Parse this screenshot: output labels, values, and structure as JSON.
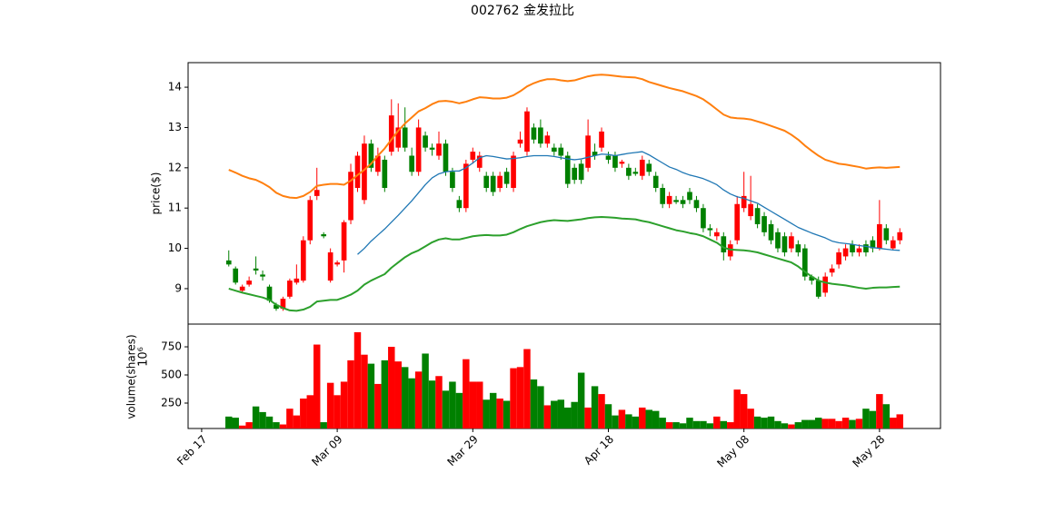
{
  "chart_data": {
    "type": "candlestick",
    "title": "002762   金发拉比",
    "ylabel": "price($)",
    "x": [
      "Feb 21",
      "Feb 22",
      "Feb 23",
      "Feb 24",
      "Feb 25",
      "Feb 26",
      "Feb 27",
      "Feb 28",
      "Mar 01",
      "Mar 02",
      "Mar 03",
      "Mar 04",
      "Mar 05",
      "Mar 06",
      "Mar 07",
      "Mar 08",
      "Mar 09",
      "Mar 10",
      "Mar 11",
      "Mar 12",
      "Mar 13",
      "Mar 14",
      "Mar 15",
      "Mar 16",
      "Mar 17",
      "Mar 18",
      "Mar 19",
      "Mar 20",
      "Mar 21",
      "Mar 22",
      "Mar 23",
      "Mar 24",
      "Mar 25",
      "Mar 26",
      "Mar 27",
      "Mar 28",
      "Mar 29",
      "Mar 30",
      "Mar 31",
      "Apr 01",
      "Apr 02",
      "Apr 03",
      "Apr 04",
      "Apr 05",
      "Apr 06",
      "Apr 07",
      "Apr 08",
      "Apr 09",
      "Apr 10",
      "Apr 11",
      "Apr 12",
      "Apr 13",
      "Apr 14",
      "Apr 15",
      "Apr 16",
      "Apr 17",
      "Apr 18",
      "Apr 19",
      "Apr 20",
      "Apr 21",
      "Apr 22",
      "Apr 23",
      "Apr 24",
      "Apr 25",
      "Apr 26",
      "Apr 27",
      "Apr 28",
      "Apr 29",
      "Apr 30",
      "May 01",
      "May 02",
      "May 03",
      "May 04",
      "May 05",
      "May 06",
      "May 07",
      "May 08",
      "May 09",
      "May 10",
      "May 11",
      "May 12",
      "May 13",
      "May 14",
      "May 15",
      "May 16",
      "May 17",
      "May 18",
      "May 19",
      "May 20",
      "May 21",
      "May 22",
      "May 23",
      "May 24",
      "May 25",
      "May 26",
      "May 27",
      "May 28",
      "May 29",
      "May 30",
      "May 31"
    ],
    "open": [
      9.7,
      9.5,
      8.95,
      9.1,
      9.5,
      9.35,
      9.05,
      8.6,
      8.5,
      8.8,
      9.15,
      9.2,
      10.2,
      11.3,
      10.35,
      9.2,
      9.6,
      9.7,
      10.7,
      11.5,
      11.2,
      12.6,
      11.9,
      12.2,
      12.4,
      12.5,
      13.0,
      12.3,
      11.9,
      12.8,
      12.5,
      12.3,
      12.6,
      11.9,
      11.2,
      11.0,
      12.2,
      12.0,
      11.8,
      11.8,
      11.5,
      11.9,
      11.5,
      12.6,
      12.4,
      13.0,
      13.0,
      12.6,
      12.5,
      12.5,
      12.3,
      12.0,
      12.1,
      12.0,
      12.4,
      12.5,
      12.3,
      12.3,
      12.1,
      12.0,
      11.9,
      11.8,
      12.1,
      11.8,
      11.5,
      11.1,
      11.2,
      11.2,
      11.4,
      11.2,
      11.0,
      10.5,
      10.3,
      10.3,
      9.8,
      10.2,
      11.0,
      10.8,
      11.0,
      10.8,
      10.6,
      10.4,
      10.3,
      10.0,
      10.1,
      10.0,
      9.3,
      9.2,
      8.9,
      9.4,
      9.6,
      9.8,
      10.1,
      9.9,
      10.1,
      10.2,
      10.0,
      10.5,
      10.0,
      10.2
    ],
    "high": [
      9.95,
      9.55,
      9.1,
      9.3,
      9.8,
      9.45,
      9.1,
      8.65,
      8.8,
      9.25,
      9.6,
      10.3,
      11.3,
      12.0,
      10.4,
      10.0,
      9.7,
      10.7,
      12.1,
      12.4,
      12.8,
      12.7,
      12.5,
      12.3,
      13.7,
      13.6,
      13.5,
      12.5,
      13.2,
      12.9,
      12.6,
      12.9,
      12.7,
      12.0,
      11.3,
      12.2,
      12.5,
      12.4,
      11.9,
      11.9,
      11.9,
      12.0,
      12.4,
      12.9,
      13.5,
      13.1,
      13.2,
      12.9,
      12.6,
      12.6,
      12.4,
      12.1,
      12.2,
      13.2,
      12.6,
      13.0,
      12.4,
      12.4,
      12.2,
      12.1,
      12.0,
      12.3,
      12.2,
      11.9,
      11.6,
      11.4,
      11.3,
      11.3,
      11.5,
      11.3,
      11.1,
      10.6,
      10.5,
      10.4,
      10.2,
      11.3,
      11.9,
      11.8,
      11.1,
      10.9,
      10.7,
      10.5,
      10.4,
      10.4,
      10.2,
      10.1,
      9.35,
      9.3,
      9.4,
      9.6,
      10.0,
      10.1,
      10.2,
      10.1,
      10.2,
      10.3,
      11.2,
      10.6,
      10.3,
      10.5
    ],
    "low": [
      9.55,
      9.1,
      8.9,
      9.05,
      9.35,
      9.2,
      8.65,
      8.45,
      8.45,
      8.75,
      9.1,
      9.15,
      10.1,
      11.2,
      10.25,
      9.15,
      9.55,
      9.4,
      10.6,
      11.4,
      11.1,
      11.9,
      11.8,
      11.4,
      12.3,
      12.4,
      12.4,
      11.8,
      11.8,
      12.4,
      12.3,
      12.2,
      11.8,
      11.4,
      10.9,
      10.9,
      12.1,
      11.9,
      11.4,
      11.3,
      11.4,
      11.5,
      11.4,
      12.5,
      12.3,
      12.6,
      12.5,
      12.5,
      12.3,
      12.2,
      11.5,
      11.6,
      11.6,
      11.9,
      12.2,
      12.4,
      12.1,
      11.9,
      12.0,
      11.7,
      11.8,
      11.7,
      11.8,
      11.4,
      11.0,
      11.0,
      11.1,
      11.0,
      11.1,
      10.9,
      10.4,
      10.3,
      10.2,
      9.7,
      9.7,
      10.1,
      10.9,
      10.7,
      10.5,
      10.3,
      10.1,
      9.9,
      9.8,
      9.9,
      9.8,
      9.2,
      9.1,
      8.75,
      8.8,
      9.3,
      9.5,
      9.7,
      9.8,
      9.8,
      9.8,
      9.9,
      9.95,
      10.1,
      9.95,
      10.1
    ],
    "close": [
      9.6,
      9.15,
      9.05,
      9.2,
      9.45,
      9.3,
      8.7,
      8.5,
      8.75,
      9.2,
      9.25,
      10.2,
      11.2,
      11.45,
      10.3,
      9.9,
      9.65,
      10.65,
      11.9,
      12.3,
      12.6,
      12.0,
      12.3,
      11.5,
      13.3,
      13.0,
      12.5,
      11.9,
      13.0,
      12.5,
      12.45,
      12.6,
      11.9,
      11.5,
      11.0,
      12.1,
      12.4,
      12.3,
      11.5,
      11.4,
      11.8,
      11.6,
      12.3,
      12.7,
      13.4,
      12.7,
      12.6,
      12.8,
      12.4,
      12.3,
      11.6,
      11.7,
      11.7,
      12.8,
      12.3,
      12.9,
      12.2,
      12.0,
      12.15,
      11.8,
      11.85,
      12.2,
      11.9,
      11.5,
      11.1,
      11.3,
      11.15,
      11.1,
      11.2,
      11.0,
      10.5,
      10.45,
      10.4,
      9.9,
      10.1,
      11.1,
      11.3,
      11.1,
      10.6,
      10.4,
      10.2,
      10.0,
      9.9,
      10.3,
      9.9,
      9.3,
      9.2,
      8.8,
      9.3,
      9.5,
      9.9,
      10.0,
      9.9,
      10.0,
      9.9,
      10.0,
      10.6,
      10.2,
      10.2,
      10.4
    ],
    "up_color": "#ff0000",
    "down_color": "#008000",
    "lines": [
      {
        "color": "#ff7f0e",
        "linewidth": 2,
        "values": [
          11.95,
          11.88,
          11.8,
          11.74,
          11.7,
          11.62,
          11.52,
          11.38,
          11.3,
          11.26,
          11.25,
          11.3,
          11.4,
          11.55,
          11.58,
          11.6,
          11.6,
          11.58,
          11.68,
          11.82,
          11.95,
          12.1,
          12.3,
          12.48,
          12.7,
          12.92,
          13.1,
          13.25,
          13.4,
          13.48,
          13.58,
          13.65,
          13.66,
          13.64,
          13.6,
          13.64,
          13.7,
          13.75,
          13.74,
          13.72,
          13.72,
          13.74,
          13.8,
          13.9,
          14.02,
          14.1,
          14.16,
          14.2,
          14.2,
          14.17,
          14.15,
          14.17,
          14.22,
          14.27,
          14.3,
          14.31,
          14.3,
          14.28,
          14.26,
          14.25,
          14.24,
          14.2,
          14.13,
          14.08,
          14.03,
          13.98,
          13.94,
          13.9,
          13.84,
          13.78,
          13.7,
          13.58,
          13.45,
          13.32,
          13.25,
          13.23,
          13.22,
          13.2,
          13.15,
          13.1,
          13.04,
          12.98,
          12.92,
          12.82,
          12.7,
          12.55,
          12.42,
          12.3,
          12.2,
          12.15,
          12.1,
          12.08,
          12.05,
          12.02,
          11.98,
          12.0,
          12.01,
          12.0,
          12.01,
          12.02
        ]
      },
      {
        "color": "#2ca02c",
        "linewidth": 2,
        "values": [
          9.0,
          8.95,
          8.9,
          8.86,
          8.82,
          8.78,
          8.72,
          8.6,
          8.52,
          8.46,
          8.45,
          8.48,
          8.55,
          8.68,
          8.7,
          8.72,
          8.72,
          8.78,
          8.85,
          8.95,
          9.1,
          9.2,
          9.28,
          9.36,
          9.52,
          9.65,
          9.78,
          9.88,
          9.95,
          10.05,
          10.15,
          10.22,
          10.25,
          10.22,
          10.22,
          10.26,
          10.3,
          10.32,
          10.33,
          10.32,
          10.32,
          10.34,
          10.4,
          10.48,
          10.55,
          10.6,
          10.65,
          10.68,
          10.7,
          10.69,
          10.68,
          10.7,
          10.72,
          10.75,
          10.77,
          10.78,
          10.77,
          10.76,
          10.74,
          10.73,
          10.72,
          10.68,
          10.65,
          10.6,
          10.55,
          10.5,
          10.45,
          10.42,
          10.38,
          10.35,
          10.3,
          10.22,
          10.14,
          10.02,
          9.97,
          9.96,
          9.95,
          9.93,
          9.9,
          9.85,
          9.8,
          9.75,
          9.7,
          9.65,
          9.55,
          9.42,
          9.3,
          9.2,
          9.15,
          9.12,
          9.1,
          9.08,
          9.05,
          9.02,
          9.0,
          9.02,
          9.03,
          9.03,
          9.04,
          9.05
        ]
      },
      {
        "color": "#1f77b4",
        "linewidth": 1.3,
        "values": [
          null,
          null,
          null,
          null,
          null,
          null,
          null,
          null,
          null,
          null,
          null,
          null,
          null,
          null,
          null,
          null,
          null,
          null,
          null,
          9.85,
          10.0,
          10.18,
          10.33,
          10.48,
          10.65,
          10.82,
          11.0,
          11.18,
          11.38,
          11.58,
          11.75,
          11.85,
          11.9,
          11.92,
          11.92,
          12.0,
          12.12,
          12.25,
          12.3,
          12.28,
          12.25,
          12.22,
          12.23,
          12.25,
          12.28,
          12.3,
          12.3,
          12.3,
          12.28,
          12.25,
          12.22,
          12.2,
          12.22,
          12.26,
          12.3,
          12.34,
          12.33,
          12.3,
          12.33,
          12.36,
          12.38,
          12.4,
          12.32,
          12.22,
          12.12,
          12.02,
          11.96,
          11.88,
          11.82,
          11.78,
          11.73,
          11.66,
          11.58,
          11.45,
          11.35,
          11.28,
          11.24,
          11.18,
          11.12,
          11.02,
          10.92,
          10.82,
          10.72,
          10.62,
          10.52,
          10.45,
          10.38,
          10.32,
          10.26,
          10.18,
          10.14,
          10.12,
          10.1,
          10.07,
          10.05,
          10.02,
          10.0,
          9.98,
          9.96,
          9.95
        ]
      }
    ],
    "ylim": [
      8.12,
      14.61
    ],
    "yticks": [
      9,
      10,
      11,
      12,
      13,
      14
    ],
    "xlim": [
      "Feb 15",
      "Jun 06"
    ],
    "xticks": [
      "Feb 17",
      "Mar 09",
      "Mar 29",
      "Apr 18",
      "May 08",
      "May 28"
    ],
    "volume": {
      "ylabel": "volume(shares)",
      "offset_label": "10⁶",
      "ylim": [
        24,
        952
      ],
      "yticks": [
        250,
        500,
        750
      ],
      "values": [
        130,
        120,
        50,
        80,
        220,
        170,
        130,
        80,
        60,
        200,
        140,
        290,
        320,
        770,
        80,
        430,
        320,
        440,
        630,
        880,
        680,
        600,
        420,
        630,
        750,
        620,
        570,
        470,
        530,
        690,
        450,
        490,
        360,
        440,
        340,
        640,
        440,
        440,
        280,
        340,
        290,
        270,
        560,
        570,
        730,
        460,
        400,
        230,
        270,
        280,
        210,
        260,
        520,
        210,
        400,
        330,
        240,
        140,
        190,
        150,
        130,
        210,
        190,
        180,
        120,
        80,
        80,
        70,
        120,
        90,
        90,
        70,
        130,
        90,
        80,
        370,
        330,
        200,
        130,
        120,
        130,
        90,
        70,
        60,
        80,
        100,
        100,
        120,
        110,
        110,
        90,
        120,
        100,
        110,
        200,
        180,
        330,
        240,
        120,
        150
      ]
    }
  }
}
